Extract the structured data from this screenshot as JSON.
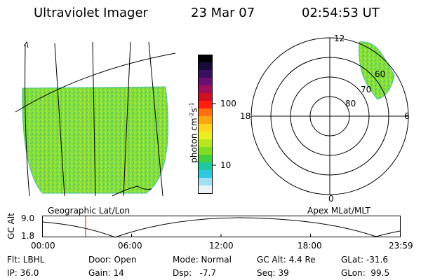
{
  "header": {
    "instrument": "Ultraviolet Imager",
    "date": "23 Mar 07",
    "time": "02:54:53 UT"
  },
  "colorbar": {
    "unit_label": "photon cm",
    "unit_sup1": "-2",
    "unit_mid": "s",
    "unit_sup2": "-1",
    "ticks": [
      "100",
      "10"
    ],
    "colors": [
      "#000000",
      "#1a0a3a",
      "#3a1060",
      "#6a1070",
      "#a0105a",
      "#d01020",
      "#ff2010",
      "#ff7010",
      "#ffa510",
      "#ffd520",
      "#e8ee20",
      "#b8e620",
      "#80dc20",
      "#40d040",
      "#20c8a0",
      "#30c8e0",
      "#a0e0f0",
      "#e8f4f8"
    ]
  },
  "left_panel": {
    "caption": "Geographic Lat/Lon"
  },
  "right_panel": {
    "caption": "Apex MLat/MLT",
    "mlt_labels": {
      "top": "12",
      "left": "18",
      "right": "6",
      "bottom": "0"
    },
    "lat_labels": [
      "60",
      "70",
      "80"
    ]
  },
  "altitude_plot": {
    "ylabel": "GC Alt",
    "yticks": [
      "9.0",
      "1.8"
    ],
    "xticks": [
      "00:00",
      "06:00",
      "12:00",
      "18:00",
      "23:59"
    ],
    "marker_time": "02:54:53"
  },
  "info": {
    "flt": "Flt: LBHL",
    "ip": "IP: 36.0",
    "door": "Door: Open",
    "gain": "Gain: 14",
    "mode": "Mode: Normal",
    "dsp": "Dsp:   -7.7",
    "gcalt": "GC Alt: 4.4 Re",
    "seq": "Seq: 39",
    "glat": "GLat: -31.6",
    "glon": "GLon:  99.5"
  },
  "colors": {
    "aurora": "#7fe03a",
    "marker": "#ff0000"
  }
}
